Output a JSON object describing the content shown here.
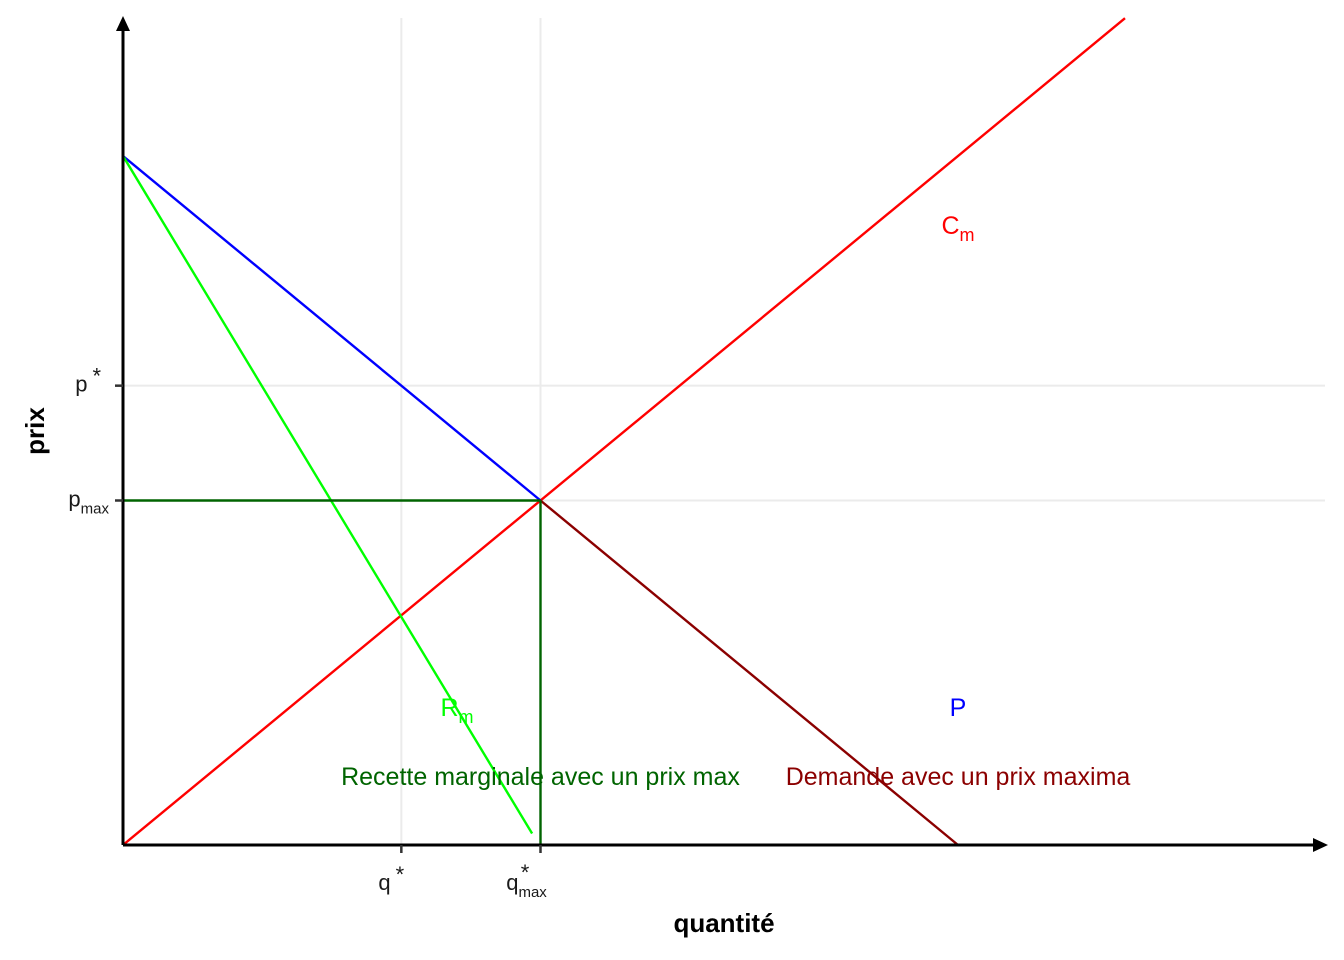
{
  "chart_data": {
    "type": "line",
    "xlabel": "quantité",
    "ylabel": "prix",
    "xlim": [
      0,
      18
    ],
    "ylim": [
      0,
      12
    ],
    "grid": true,
    "x_ticks": [
      {
        "value": 5,
        "base": "q",
        "sub": "",
        "sup": "*"
      },
      {
        "value": 7.5,
        "base": "q",
        "sub": "max",
        "sup": "*"
      }
    ],
    "y_ticks": [
      {
        "value": 8,
        "base": "p",
        "sub": "",
        "sup": "*"
      },
      {
        "value": 6,
        "base": "p",
        "sub": "max",
        "sup": ""
      }
    ],
    "series": [
      {
        "id": "cm",
        "color": "#ff0000",
        "points": [
          [
            0,
            0
          ],
          [
            18,
            14.4
          ]
        ]
      },
      {
        "id": "demand",
        "color": "#0000ff",
        "points": [
          [
            0,
            12
          ],
          [
            7.5,
            6
          ]
        ]
      },
      {
        "id": "rm",
        "color": "#00ff00",
        "points": [
          [
            0,
            12
          ],
          [
            7.35,
            0.2
          ]
        ]
      },
      {
        "id": "demand-max",
        "color": "#8b0000",
        "points": [
          [
            7.5,
            6
          ],
          [
            15,
            0
          ]
        ]
      },
      {
        "id": "pmax-horizontal",
        "color": "#006400",
        "points": [
          [
            0,
            6
          ],
          [
            7.5,
            6
          ]
        ]
      },
      {
        "id": "qmax-vertical",
        "color": "#006400",
        "points": [
          [
            7.5,
            6
          ],
          [
            7.5,
            0
          ]
        ]
      }
    ],
    "annotations": [
      {
        "id": "label-cm",
        "base": "C",
        "sub": "m",
        "x": 15,
        "y": 10.8,
        "color": "#ff0000",
        "anchor": "middle",
        "kind": "curve-label"
      },
      {
        "id": "label-rm",
        "base": "R",
        "sub": "m",
        "x": 6,
        "y": 2.4,
        "color": "#00ff00",
        "anchor": "middle",
        "kind": "curve-label"
      },
      {
        "id": "label-p",
        "base": "P",
        "sub": "",
        "x": 15,
        "y": 2.4,
        "color": "#0000ff",
        "anchor": "middle",
        "kind": "curve-label"
      },
      {
        "id": "note-recette",
        "base": "Recette marginale avec un prix max",
        "sub": "",
        "x": 7.5,
        "y": 1.2,
        "color": "#006400",
        "anchor": "middle",
        "kind": "note"
      },
      {
        "id": "note-demande",
        "base": "Demande avec un prix maxima",
        "sub": "",
        "x": 15,
        "y": 1.2,
        "color": "#8b0000",
        "anchor": "middle",
        "kind": "note"
      }
    ]
  }
}
